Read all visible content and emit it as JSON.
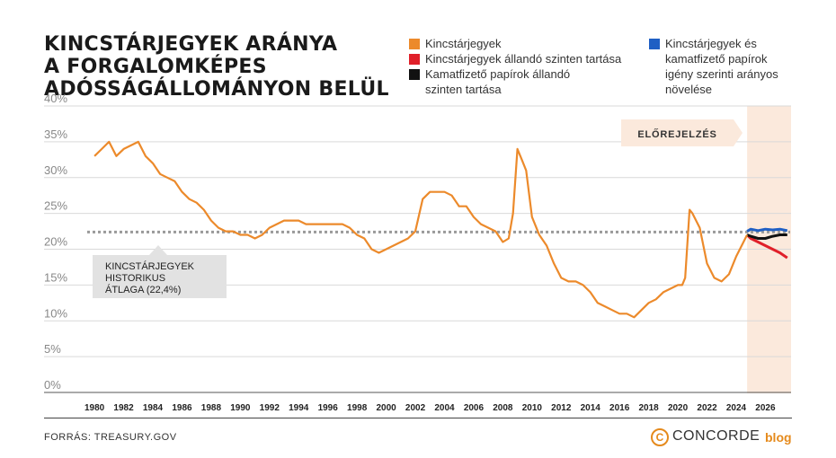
{
  "title_lines": [
    "KINCSTÁRJEGYEK ARÁNYA",
    "A FORGALOMKÉPES",
    "ADÓSSÁGÁLLOMÁNYON BELÜL"
  ],
  "legend": [
    {
      "label_lines": [
        "Kincstárjegyek"
      ],
      "color": "#ec8a2b"
    },
    {
      "label_lines": [
        "Kincstárjegyek állandó szinten tartása"
      ],
      "color": "#e0202a"
    },
    {
      "label_lines": [
        "Kamatfizető papírok állandó",
        "szinten tartása"
      ],
      "color": "#111111"
    },
    {
      "label_lines": [
        "Kincstárjegyek és",
        "kamatfizető papírok",
        "igény szerinti arányos",
        "növelése"
      ],
      "color": "#1f5fc4"
    }
  ],
  "forecast_label": "ELŐREJELZÉS",
  "average_label_lines": [
    "KINCSTÁRJEGYEK",
    "HISTORIKUS",
    "ÁTLAGA (22,4%)"
  ],
  "source": "FORRÁS: TREASURY.GOV",
  "brand": {
    "name": "CONCORDE",
    "suffix": "blog",
    "icon": "c-logo-icon"
  },
  "colors": {
    "orange": "#ec8a2b",
    "red": "#e0202a",
    "black": "#111111",
    "blue": "#1f5fc4",
    "forecast_bg": "#fbe9dc",
    "avg_line": "#9a9a9a"
  },
  "chart_data": {
    "type": "line",
    "title": "KINCSTÁRJEGYEK ARÁNYA A FORGALOMKÉPES ADÓSSÁGÁLLOMÁNYON BELÜL",
    "y_ticks": [
      "0%",
      "5%",
      "10%",
      "15%",
      "20%",
      "25%",
      "30%",
      "35%",
      "40%"
    ],
    "ylim": [
      0,
      40
    ],
    "x_ticks": [
      "1980",
      "1982",
      "1984",
      "1986",
      "1988",
      "1990",
      "1992",
      "1994",
      "1996",
      "1998",
      "2000",
      "2002",
      "2004",
      "2006",
      "2008",
      "2010",
      "2012",
      "2014",
      "2016",
      "2018",
      "2020",
      "2022",
      "2024",
      "2026"
    ],
    "xlim": [
      1979.5,
      2027.7
    ],
    "grid": true,
    "average": 22.4,
    "forecast_start": 2024.75,
    "series": [
      {
        "name": "Kincstárjegyek",
        "color": "#ec8a2b",
        "x": [
          1980,
          1980.5,
          1981,
          1981.5,
          1982,
          1982.5,
          1983,
          1983.5,
          1984,
          1984.5,
          1985,
          1985.5,
          1986,
          1986.5,
          1987,
          1987.5,
          1988,
          1988.5,
          1989,
          1989.5,
          1990,
          1990.5,
          1991,
          1991.5,
          1992,
          1992.5,
          1993,
          1993.5,
          1994,
          1994.5,
          1995,
          1995.5,
          1996,
          1996.5,
          1997,
          1997.5,
          1998,
          1998.5,
          1999,
          1999.5,
          2000,
          2000.5,
          2001,
          2001.5,
          2002,
          2002.5,
          2003,
          2003.5,
          2004,
          2004.5,
          2005,
          2005.5,
          2006,
          2006.5,
          2007,
          2007.5,
          2008,
          2008.4,
          2008.7,
          2009,
          2009.3,
          2009.6,
          2010,
          2010.5,
          2011,
          2011.5,
          2012,
          2012.5,
          2013,
          2013.5,
          2014,
          2014.5,
          2015,
          2015.5,
          2016,
          2016.5,
          2017,
          2017.5,
          2018,
          2018.5,
          2019,
          2019.5,
          2020,
          2020.3,
          2020.5,
          2020.8,
          2021,
          2021.5,
          2022,
          2022.5,
          2023,
          2023.5,
          2024,
          2024.5,
          2024.75
        ],
        "values": [
          33,
          34,
          35,
          33,
          34,
          34.5,
          35,
          33,
          32,
          30.5,
          30,
          29.5,
          28,
          27,
          26.5,
          25.5,
          24,
          23,
          22.5,
          22.5,
          22,
          22,
          21.5,
          22,
          23,
          23.5,
          24,
          24,
          24,
          23.5,
          23.5,
          23.5,
          23.5,
          23.5,
          23.5,
          23,
          22,
          21.5,
          20,
          19.5,
          20,
          20.5,
          21,
          21.5,
          22.5,
          27,
          28,
          28,
          28,
          27.5,
          26,
          26,
          24.5,
          23.5,
          23,
          22.5,
          21,
          21.5,
          25,
          34,
          32.5,
          31,
          24.5,
          22,
          20.5,
          18,
          16,
          15.5,
          15.5,
          15,
          14,
          12.5,
          12,
          11.5,
          11,
          11,
          10.5,
          11.5,
          12.5,
          13,
          14,
          14.5,
          15,
          15,
          16,
          25.5,
          25,
          23,
          18,
          16,
          15.5,
          16.5,
          19,
          21,
          22
        ]
      },
      {
        "name": "Kincstárjegyek állandó szinten tartása",
        "color": "#e0202a",
        "x": [
          2024.75,
          2025,
          2025.5,
          2026,
          2026.5,
          2027,
          2027.5
        ],
        "values": [
          22,
          21.5,
          21,
          20.5,
          20,
          19.5,
          18.8
        ]
      },
      {
        "name": "Kamatfizető papírok állandó szinten tartása",
        "color": "#111111",
        "x": [
          2024.75,
          2025,
          2025.5,
          2026,
          2026.5,
          2027,
          2027.5
        ],
        "values": [
          22,
          21.8,
          21.5,
          21.5,
          21.8,
          22,
          22
        ]
      },
      {
        "name": "Kincstárjegyek és kamatfizető papírok igény szerinti arányos növelése",
        "color": "#1f5fc4",
        "x": [
          2024.75,
          2025,
          2025.5,
          2026,
          2026.5,
          2027,
          2027.5
        ],
        "values": [
          22.5,
          22.8,
          22.6,
          22.8,
          22.7,
          22.8,
          22.6
        ]
      }
    ]
  }
}
